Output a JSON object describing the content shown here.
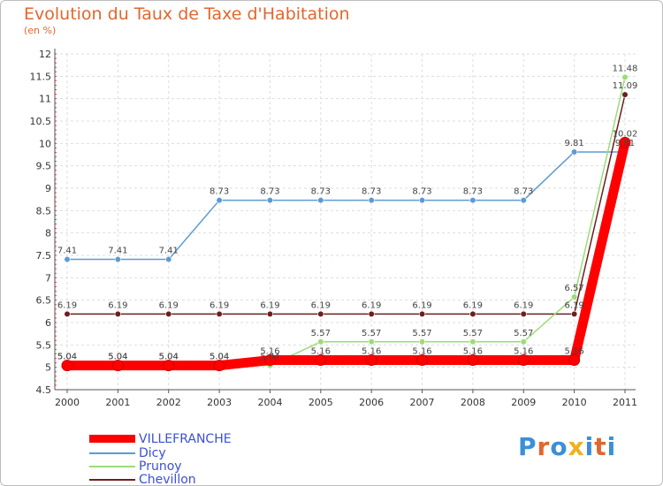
{
  "chart_data": {
    "type": "line",
    "title": "Evolution du Taux de Taxe d'Habitation",
    "subtitle": "(en %)",
    "xlabel": "",
    "ylabel": "(en %)",
    "categories": [
      "2000",
      "2001",
      "2002",
      "2003",
      "2004",
      "2005",
      "2006",
      "2007",
      "2008",
      "2009",
      "2010",
      "2011"
    ],
    "ylim": [
      4.5,
      12
    ],
    "yticks": [
      "4.5",
      "5",
      "5.5",
      "6",
      "6.5",
      "7",
      "7.5",
      "8",
      "8.5",
      "9",
      "9.5",
      "10",
      "10.5",
      "11",
      "11.5",
      "12"
    ],
    "grid": true,
    "legend_position": "bottom-left",
    "series": [
      {
        "name": "VILLEFRANCHE",
        "color": "#ff0000",
        "values": [
          5.04,
          5.04,
          5.04,
          5.04,
          5.16,
          5.16,
          5.16,
          5.16,
          5.16,
          5.16,
          5.16,
          10.02
        ],
        "labels": [
          "5.04",
          "5.04",
          "5.04",
          "5.04",
          "5.16",
          "5.16",
          "5.16",
          "5.16",
          "5.16",
          "5.16",
          "5.16",
          "10.02"
        ]
      },
      {
        "name": "Dicy",
        "color": "#5b9bd5",
        "values": [
          7.41,
          7.41,
          7.41,
          8.73,
          8.73,
          8.73,
          8.73,
          8.73,
          8.73,
          8.73,
          9.81,
          9.81
        ],
        "labels": [
          "7.41",
          "7.41",
          "7.41",
          "8.73",
          "8.73",
          "8.73",
          "8.73",
          "8.73",
          "8.73",
          "8.73",
          "9.81",
          "9.81"
        ]
      },
      {
        "name": "Prunoy",
        "color": "#99dd77",
        "values": [
          5.04,
          5.04,
          5.04,
          5.04,
          5.04,
          5.57,
          5.57,
          5.57,
          5.57,
          5.57,
          6.57,
          11.48
        ],
        "labels": [
          "5.04",
          "5.04",
          "5.04",
          "5.04",
          "5.04",
          "5.57",
          "5.57",
          "5.57",
          "5.57",
          "5.57",
          "6.57",
          "11.48"
        ]
      },
      {
        "name": "Chevillon",
        "color": "#6b2020",
        "values": [
          6.19,
          6.19,
          6.19,
          6.19,
          6.19,
          6.19,
          6.19,
          6.19,
          6.19,
          6.19,
          6.19,
          11.09
        ],
        "labels": [
          "6.19",
          "6.19",
          "6.19",
          "6.19",
          "6.19",
          "6.19",
          "6.19",
          "6.19",
          "6.19",
          "6.19",
          "6.19",
          "11.09"
        ]
      }
    ]
  },
  "logo": {
    "letters": [
      "P",
      "r",
      "o",
      "x",
      "i",
      "t",
      "i"
    ],
    "colors": [
      "#3b8fd8",
      "#e0672f",
      "#3b8fd8",
      "#f0b020",
      "#3b8fd8",
      "#e0672f",
      "#3b8fd8"
    ]
  }
}
